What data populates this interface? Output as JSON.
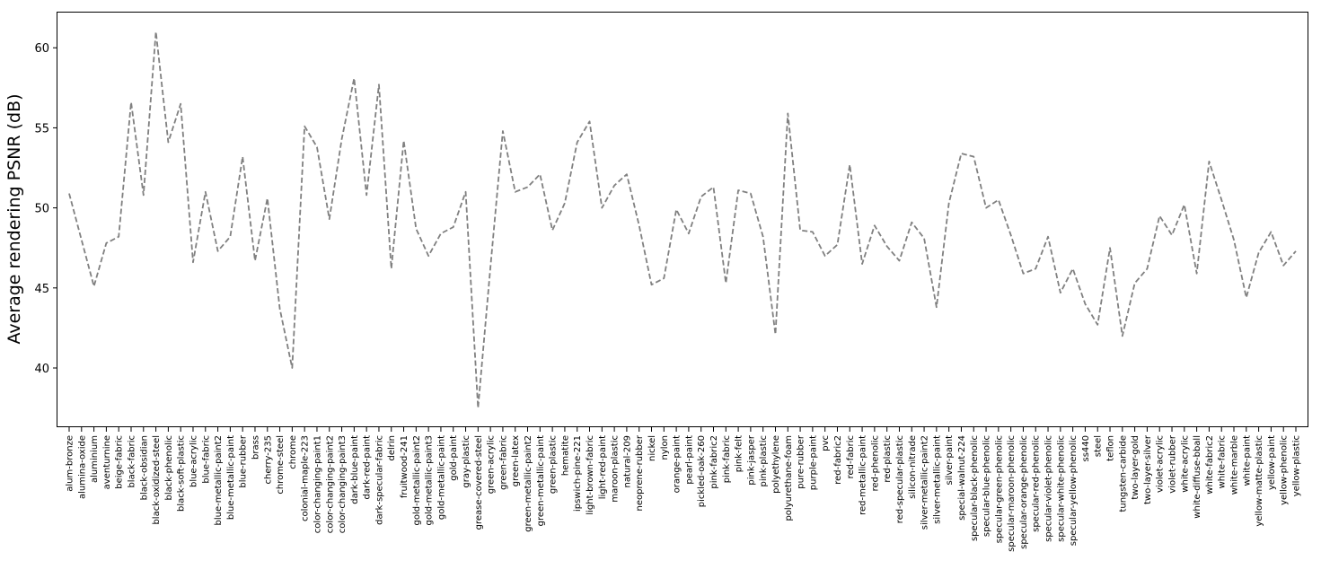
{
  "chart_data": {
    "type": "line",
    "title": "",
    "xlabel": "",
    "ylabel": "Average rendering PSNR (dB)",
    "ylim": [
      36.3,
      62.2
    ],
    "yticks": [
      40,
      45,
      50,
      55,
      60
    ],
    "grid": false,
    "line_color": "#808080",
    "line_style": "dashed",
    "categories": [
      "alum-bronze",
      "alumina-oxide",
      "aluminium",
      "aventurnine",
      "beige-fabric",
      "black-fabric",
      "black-obsidian",
      "black-oxidized-steel",
      "black-phenolic",
      "black-soft-plastic",
      "blue-acrylic",
      "blue-fabric",
      "blue-metallic-paint2",
      "blue-metallic-paint",
      "blue-rubber",
      "brass",
      "cherry-235",
      "chrome-steel",
      "chrome",
      "colonial-maple-223",
      "color-changing-paint1",
      "color-changing-paint2",
      "color-changing-paint3",
      "dark-blue-paint",
      "dark-red-paint",
      "dark-specular-fabric",
      "delrin",
      "fruitwood-241",
      "gold-metallic-paint2",
      "gold-metallic-paint3",
      "gold-metallic-paint",
      "gold-paint",
      "gray-plastic",
      "grease-covered-steel",
      "green-acrylic",
      "green-fabric",
      "green-latex",
      "green-metallic-paint2",
      "green-metallic-paint",
      "green-plastic",
      "hematite",
      "ipswich-pine-221",
      "light-brown-fabric",
      "light-red-paint",
      "maroon-plastic",
      "natural-209",
      "neoprene-rubber",
      "nickel",
      "nylon",
      "orange-paint",
      "pearl-paint",
      "pickled-oak-260",
      "pink-fabric2",
      "pink-fabric",
      "pink-felt",
      "pink-jasper",
      "pink-plastic",
      "polyethylene",
      "polyurethane-foam",
      "pure-rubber",
      "purple-paint",
      "pvc",
      "red-fabric2",
      "red-fabric",
      "red-metallic-paint",
      "red-phenolic",
      "red-plastic",
      "red-specular-plastic",
      "silicon-nitrade",
      "silver-metallic-paint2",
      "silver-metallic-paint",
      "silver-paint",
      "special-walnut-224",
      "specular-black-phenolic",
      "specular-blue-phenolic",
      "specular-green-phenolic",
      "specular-maroon-phenolic",
      "specular-orange-phenolic",
      "specular-red-phenolic",
      "specular-violet-phenolic",
      "specular-white-phenolic",
      "specular-yellow-phenolic",
      "ss440",
      "steel",
      "teflon",
      "tungsten-carbide",
      "two-layer-gold",
      "two-layer-silver",
      "violet-acrylic",
      "violet-rubber",
      "white-acrylic",
      "white-diffuse-bball",
      "white-fabric2",
      "white-fabric",
      "white-marble",
      "white-paint",
      "yellow-matte-plastic",
      "yellow-paint",
      "yellow-phenolic",
      "yellow-plastic"
    ],
    "values": [
      50.9,
      48.0,
      45.1,
      47.8,
      48.2,
      56.6,
      50.8,
      61.0,
      54.1,
      56.5,
      46.6,
      51.0,
      47.3,
      48.2,
      53.2,
      46.7,
      50.6,
      43.7,
      40.0,
      55.1,
      53.8,
      49.3,
      54.3,
      58.1,
      50.8,
      57.7,
      46.2,
      54.2,
      48.7,
      47.0,
      48.4,
      48.8,
      51.0,
      37.5,
      46.3,
      54.8,
      51.0,
      51.3,
      52.1,
      48.6,
      50.3,
      54.1,
      55.4,
      50.0,
      51.4,
      52.1,
      48.9,
      45.2,
      45.6,
      49.9,
      48.4,
      50.7,
      51.3,
      45.3,
      51.1,
      50.9,
      48.2,
      42.1,
      55.9,
      48.6,
      48.5,
      47.0,
      47.7,
      52.7,
      46.5,
      48.9,
      47.6,
      46.7,
      49.1,
      48.1,
      43.8,
      50.3,
      53.4,
      53.2,
      50.0,
      50.5,
      48.3,
      45.9,
      46.2,
      48.2,
      44.7,
      46.2,
      44.0,
      42.7,
      47.5,
      42.0,
      45.3,
      46.2,
      49.5,
      48.3,
      50.2,
      45.9,
      52.9,
      50.5,
      48.0,
      44.4,
      47.2,
      48.5,
      46.4,
      47.3
    ]
  }
}
